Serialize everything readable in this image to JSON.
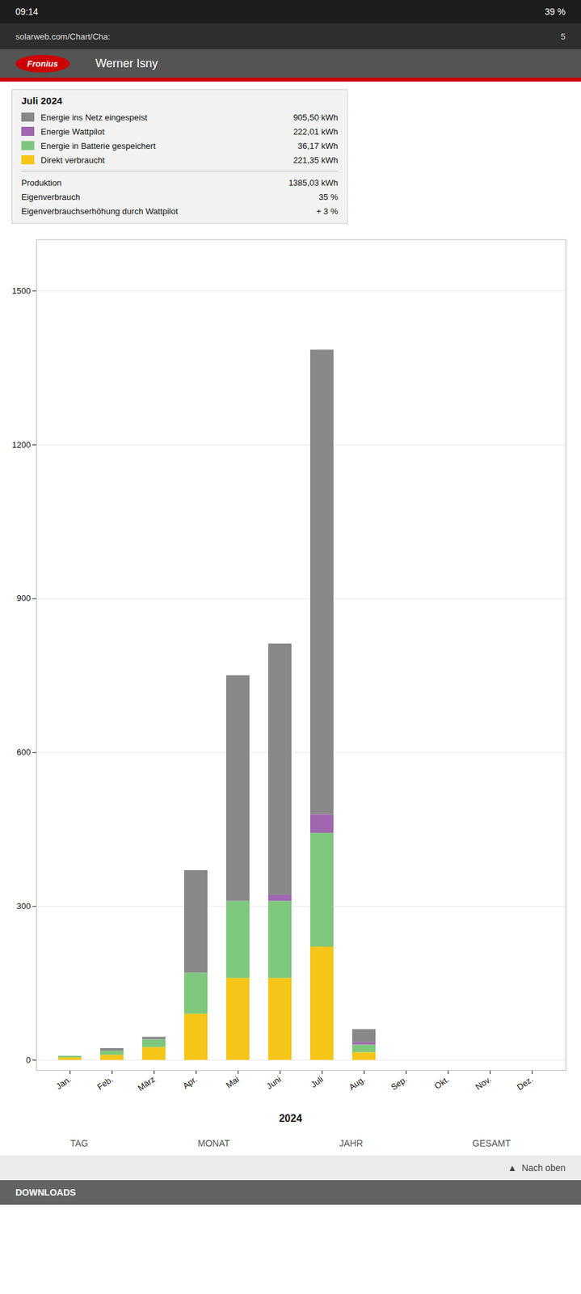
{
  "chart_data": {
    "type": "bar",
    "stacked": true,
    "title": "Werner Isny",
    "subtitle": "Juli 2024",
    "categories": [
      "Jan.",
      "Feb.",
      "März",
      "Apr.",
      "Mai",
      "Juni",
      "Juli",
      "Aug.",
      "Sep.",
      "Okt.",
      "Nov.",
      "Dez."
    ],
    "series": [
      {
        "name": "Direkt verbraucht",
        "color": "#f5c518",
        "values": [
          5,
          10,
          25,
          90,
          160,
          160,
          221,
          15,
          0,
          0,
          0,
          0
        ]
      },
      {
        "name": "Energie in Batterie gespeichert",
        "color": "#7ec87e",
        "values": [
          3,
          8,
          15,
          80,
          150,
          150,
          222,
          15,
          0,
          0,
          0,
          0
        ]
      },
      {
        "name": "Energie Wattpilot",
        "color": "#a066b0",
        "values": [
          0,
          0,
          0,
          0,
          0,
          12,
          36,
          5,
          0,
          0,
          0,
          0
        ]
      },
      {
        "name": "Energie ins Netz eingespeist",
        "color": "#888888",
        "values": [
          0,
          5,
          5,
          200,
          440,
          490,
          906,
          25,
          0,
          0,
          0,
          0
        ]
      }
    ],
    "ylim": [
      -20,
      1600
    ],
    "yticks": [
      0,
      300,
      600,
      900,
      1200,
      1500
    ],
    "grid": true,
    "annotations": [
      [
        "09:14",
        "39 %"
      ],
      [
        "solarweb.com/Chart/Cha:",
        "5"
      ],
      [
        "Fronius"
      ],
      [
        "905,50 kWh"
      ],
      [
        "222,01 kWh"
      ],
      [
        "36,17 kWh"
      ],
      [
        "221,35 kWh"
      ],
      [
        "Produktion",
        "1385,03 kWh"
      ],
      [
        "Eigenverbrauch",
        "35 %"
      ],
      [
        "Eigenverbrauchserhöhung durch Wattpilot",
        "+ 3 %"
      ],
      [
        "2024"
      ],
      [
        "TAG",
        "MONAT",
        "JAHR",
        "GESAMT"
      ],
      [
        "▲  Nach oben"
      ],
      [
        "DOWNLOADS"
      ]
    ]
  }
}
